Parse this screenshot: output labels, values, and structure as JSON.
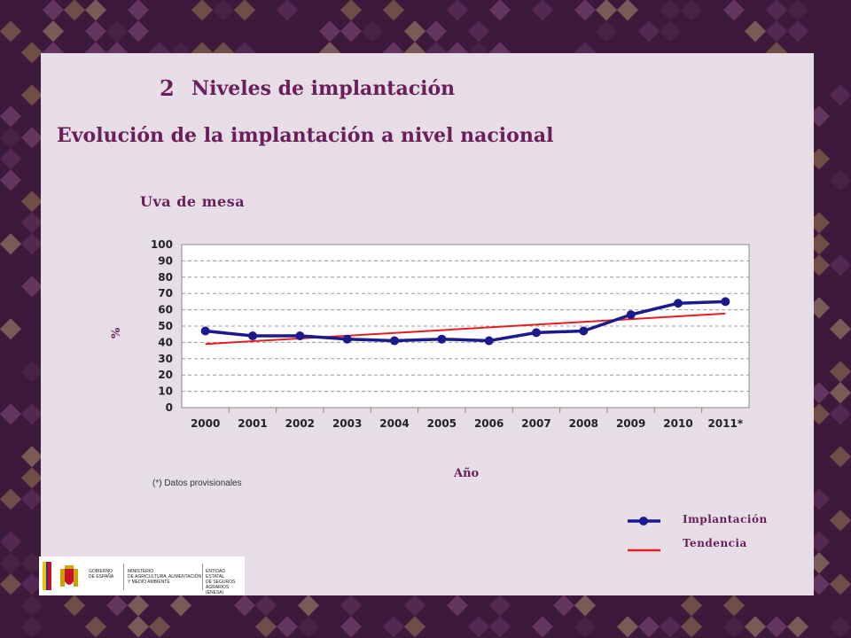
{
  "slide": {
    "section_number": "2",
    "section_title": "Niveles de implantación",
    "subtitle": "Evolución de la implantación a nivel nacional",
    "footnote": "(*) Datos provisionales"
  },
  "legend": [
    {
      "label": "Implantación",
      "color": "#1a1a8c",
      "marker": "circle"
    },
    {
      "label": "Tendencia",
      "color": "#e61e1e",
      "marker": "none"
    }
  ],
  "logos": {
    "gobierno": [
      "GOBIERNO",
      "DE ESPAÑA"
    ],
    "ministerio": [
      "MINISTERIO",
      "DE AGRICULTURA, ALIMENTACIÓN",
      "Y MEDIO AMBIENTE"
    ],
    "entidad": [
      "ENTIDAD ESTATAL",
      "DE SEGUROS",
      "AGRARIOS (ENESA)"
    ]
  },
  "chart_data": {
    "type": "line",
    "title": "Uva de mesa",
    "xlabel": "Año",
    "ylabel": "%",
    "categories": [
      "2000",
      "2001",
      "2002",
      "2003",
      "2004",
      "2005",
      "2006",
      "2007",
      "2008",
      "2009",
      "2010",
      "2011*"
    ],
    "ylim": [
      0,
      100
    ],
    "yticks": [
      0,
      10,
      20,
      30,
      40,
      50,
      60,
      70,
      80,
      90,
      100
    ],
    "grid": "horizontal dashed",
    "series": [
      {
        "name": "Implantación",
        "values": [
          47,
          44,
          44,
          42,
          41,
          42,
          41,
          46,
          47,
          57,
          64,
          65
        ]
      },
      {
        "name": "Tendencia",
        "values": [
          39,
          40.7,
          42.4,
          44.1,
          45.8,
          47.5,
          49.2,
          50.9,
          52.6,
          54.3,
          56,
          57.7
        ]
      }
    ]
  }
}
